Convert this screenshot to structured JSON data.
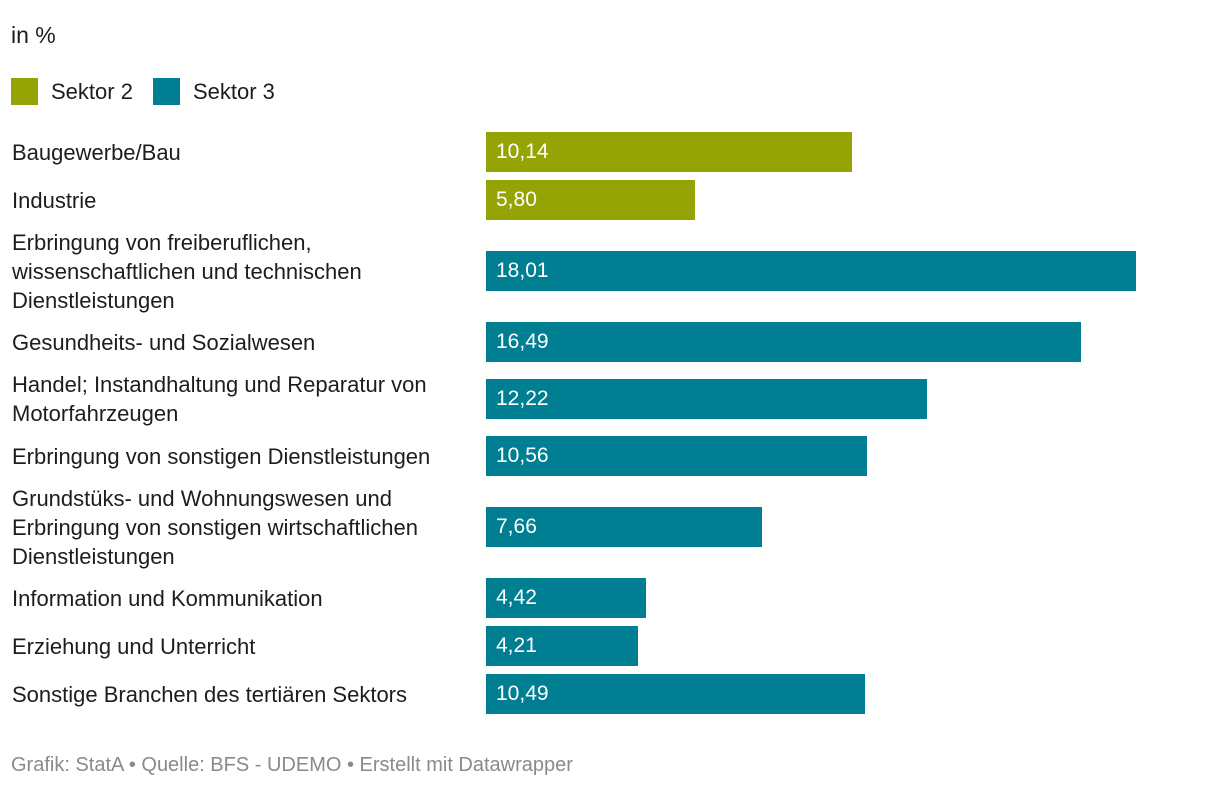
{
  "subtitle": "in %",
  "colors": {
    "sektor2": "#95a304",
    "sektor3": "#007f93"
  },
  "legend": [
    {
      "label": "Sektor 2",
      "color_key": "sektor2"
    },
    {
      "label": "Sektor 3",
      "color_key": "sektor3"
    }
  ],
  "chart_data": {
    "type": "bar",
    "orientation": "horizontal",
    "title": "",
    "unit": "%",
    "xlim": [
      0,
      18.01
    ],
    "categories": [
      "Baugewerbe/Bau",
      "Industrie",
      "Erbringung von freiberuflichen, wissenschaftlichen und technischen Dienstleistungen",
      "Gesundheits- und Sozialwesen",
      "Handel; Instandhaltung und Reparatur von Motorfahrzeugen",
      "Erbringung von sonstigen Dienstleistungen",
      "Grundstüks- und Wohnungswesen und Erbringung von sonstigen wirtschaftlichen Dienstleistungen",
      "Information und Kommunikation",
      "Erziehung und Unterricht",
      "Sonstige Branchen des tertiären Sektors"
    ],
    "values": [
      10.14,
      5.8,
      18.01,
      16.49,
      12.22,
      10.56,
      7.66,
      4.42,
      4.21,
      10.49
    ],
    "value_labels": [
      "10,14",
      "5,80",
      "18,01",
      "16,49",
      "12,22",
      "10,56",
      "7,66",
      "4,42",
      "4,21",
      "10,49"
    ],
    "sector": [
      "Sektor 2",
      "Sektor 2",
      "Sektor 3",
      "Sektor 3",
      "Sektor 3",
      "Sektor 3",
      "Sektor 3",
      "Sektor 3",
      "Sektor 3",
      "Sektor 3"
    ]
  },
  "footer": "Grafik: StatA • Quelle: BFS - UDEMO • Erstellt mit Datawrapper"
}
